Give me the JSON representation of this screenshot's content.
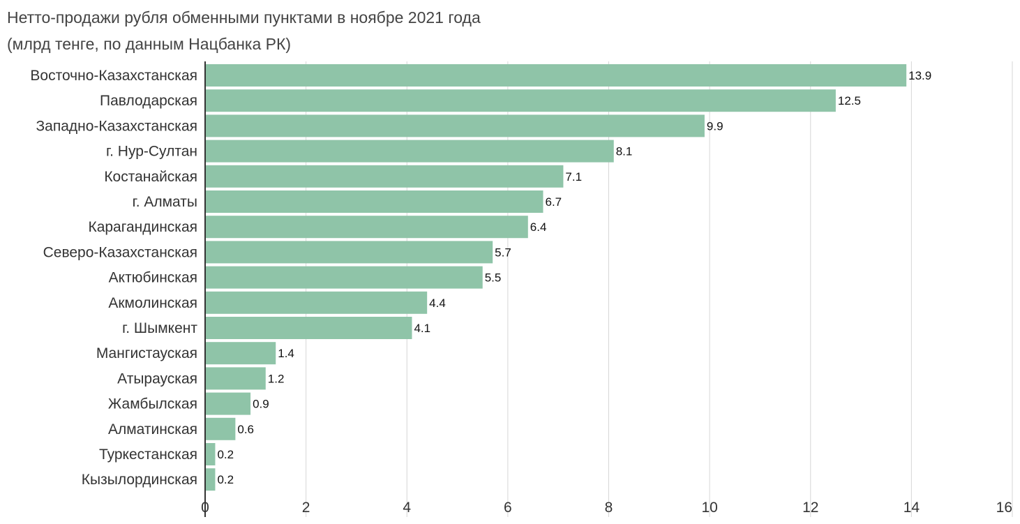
{
  "title": "Нетто-продажи рубля обменными пунктами в ноябре 2021 года",
  "subtitle": "(млрд тенге, по данным Нацбанка РК)",
  "chart_data": {
    "type": "bar",
    "orientation": "horizontal",
    "title": "Нетто-продажи рубля обменными пунктами в ноябре 2021 года",
    "subtitle": "(млрд тенге, по данным Нацбанка РК)",
    "categories": [
      "Восточно-Казахстанская",
      "Павлодарская",
      "Западно-Казахстанская",
      "г. Нур-Султан",
      "Костанайская",
      "г. Алматы",
      "Карагандинская",
      "Северо-Казахстанская",
      "Актюбинская",
      "Акмолинская",
      "г. Шымкент",
      "Мангистауская",
      "Атырауская",
      "Жамбылская",
      "Алматинская",
      "Туркестанская",
      "Кызылординская"
    ],
    "values": [
      13.9,
      12.5,
      9.9,
      8.1,
      7.1,
      6.7,
      6.4,
      5.7,
      5.5,
      4.4,
      4.1,
      1.4,
      1.2,
      0.9,
      0.6,
      0.2,
      0.2
    ],
    "xlim": [
      0,
      16
    ],
    "xticks": [
      0,
      2,
      4,
      6,
      8,
      10,
      12,
      14,
      16
    ],
    "grid": true,
    "legend": "none",
    "bar_color": "#8fc4a8",
    "grid_color": "#d6d6d6",
    "axis_color": "#333333"
  }
}
